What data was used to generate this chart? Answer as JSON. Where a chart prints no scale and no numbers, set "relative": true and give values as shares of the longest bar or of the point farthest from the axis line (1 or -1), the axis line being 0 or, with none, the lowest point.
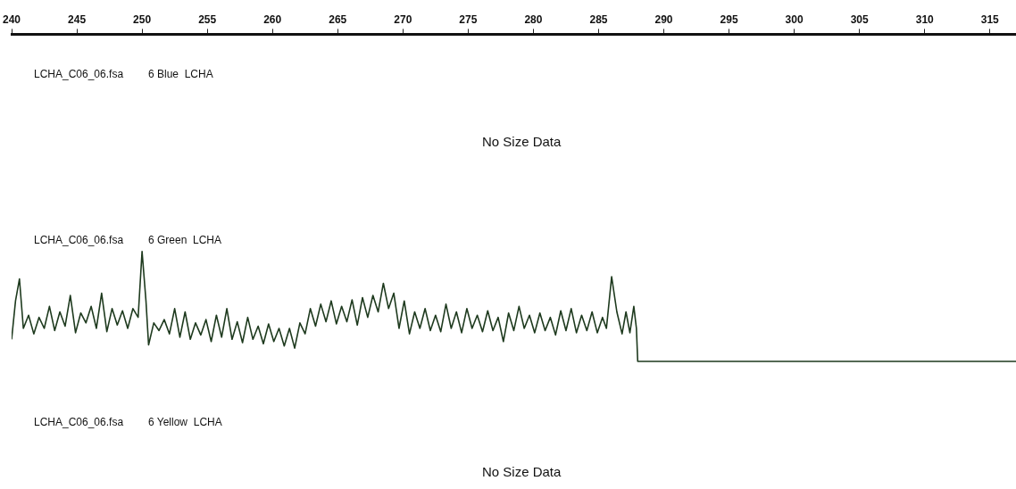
{
  "chart_data": {
    "type": "line",
    "relative": true,
    "legend": false,
    "grid": false,
    "marker": "none",
    "line_style": "solid",
    "tick_labels": "x",
    "xlim": [
      240,
      317
    ],
    "xticks": [
      240,
      245,
      250,
      255,
      260,
      265,
      270,
      275,
      280,
      285,
      290,
      295,
      300,
      305,
      310,
      315
    ],
    "annotations": [
      "LCHA_C06_06.fsa",
      "6 Blue  LCHA",
      "No Size Data",
      "LCHA_C06_06.fsa",
      "6 Green  LCHA",
      "LCHA_C06_06.fsa",
      "6 Yellow  LCHA",
      "No Size Data"
    ],
    "series": [
      {
        "color": "#1e3a1e",
        "x": [
          240.0,
          240.3,
          240.6,
          240.9,
          241.3,
          241.7,
          242.1,
          242.5,
          242.9,
          243.3,
          243.7,
          244.1,
          244.5,
          244.9,
          245.3,
          245.7,
          246.1,
          246.5,
          246.9,
          247.3,
          247.7,
          248.1,
          248.5,
          248.9,
          249.3,
          249.7,
          250.0,
          250.3,
          250.5,
          250.9,
          251.3,
          251.7,
          252.1,
          252.5,
          252.9,
          253.3,
          253.7,
          254.1,
          254.5,
          254.9,
          255.3,
          255.7,
          256.1,
          256.5,
          256.9,
          257.3,
          257.7,
          258.1,
          258.5,
          258.9,
          259.3,
          259.7,
          260.1,
          260.5,
          260.9,
          261.3,
          261.7,
          262.1,
          262.5,
          262.9,
          263.3,
          263.7,
          264.1,
          264.5,
          264.9,
          265.3,
          265.7,
          266.1,
          266.5,
          266.9,
          267.3,
          267.7,
          268.1,
          268.5,
          268.9,
          269.3,
          269.7,
          270.1,
          270.5,
          270.9,
          271.3,
          271.7,
          272.1,
          272.5,
          272.9,
          273.3,
          273.7,
          274.1,
          274.5,
          274.9,
          275.3,
          275.7,
          276.1,
          276.5,
          276.9,
          277.3,
          277.7,
          278.1,
          278.5,
          278.9,
          279.3,
          279.7,
          280.1,
          280.5,
          280.9,
          281.3,
          281.7,
          282.1,
          282.5,
          282.9,
          283.3,
          283.7,
          284.1,
          284.5,
          284.9,
          285.3,
          285.6,
          286.0,
          286.4,
          286.8,
          287.1,
          287.4,
          287.7,
          287.9,
          288.0,
          317
        ],
        "values": [
          0.2,
          0.55,
          0.75,
          0.3,
          0.42,
          0.25,
          0.4,
          0.3,
          0.5,
          0.28,
          0.45,
          0.32,
          0.6,
          0.26,
          0.44,
          0.35,
          0.5,
          0.3,
          0.62,
          0.27,
          0.48,
          0.33,
          0.46,
          0.3,
          0.48,
          0.4,
          1.0,
          0.55,
          0.15,
          0.35,
          0.28,
          0.38,
          0.25,
          0.48,
          0.22,
          0.45,
          0.2,
          0.35,
          0.24,
          0.38,
          0.18,
          0.42,
          0.22,
          0.48,
          0.2,
          0.36,
          0.17,
          0.4,
          0.2,
          0.32,
          0.16,
          0.34,
          0.18,
          0.3,
          0.14,
          0.3,
          0.12,
          0.35,
          0.25,
          0.48,
          0.32,
          0.52,
          0.36,
          0.55,
          0.34,
          0.5,
          0.36,
          0.56,
          0.33,
          0.58,
          0.4,
          0.6,
          0.45,
          0.71,
          0.48,
          0.62,
          0.3,
          0.55,
          0.25,
          0.45,
          0.3,
          0.48,
          0.28,
          0.42,
          0.27,
          0.52,
          0.3,
          0.45,
          0.26,
          0.48,
          0.3,
          0.42,
          0.27,
          0.46,
          0.28,
          0.4,
          0.18,
          0.44,
          0.28,
          0.5,
          0.3,
          0.42,
          0.26,
          0.44,
          0.28,
          0.4,
          0.24,
          0.46,
          0.28,
          0.48,
          0.26,
          0.42,
          0.28,
          0.45,
          0.26,
          0.4,
          0.3,
          0.77,
          0.45,
          0.25,
          0.45,
          0.26,
          0.5,
          0.3,
          0,
          0
        ]
      }
    ]
  }
}
